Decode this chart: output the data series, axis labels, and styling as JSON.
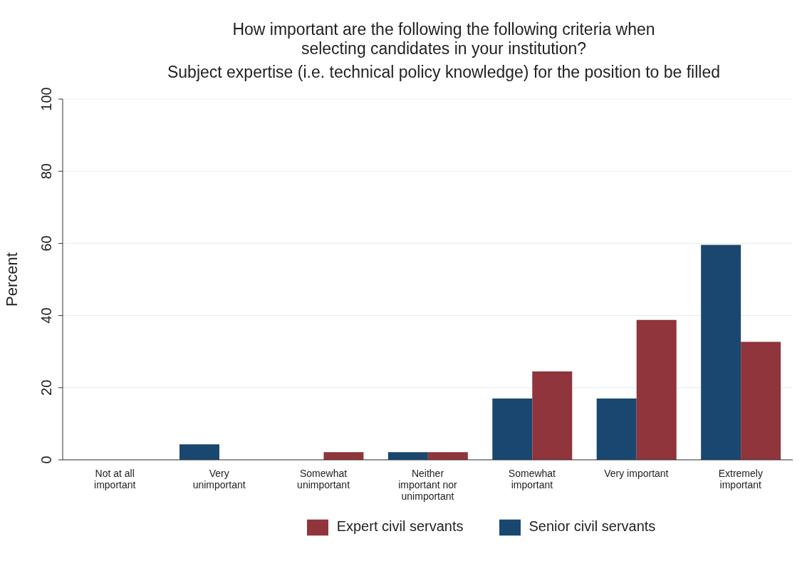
{
  "chart_data": {
    "type": "bar",
    "title": "How important are the following the following criteria when selecting candidates in your institution?",
    "subtitle": "Subject expertise (i.e. technical policy knowledge) for the position to be filled",
    "ylabel": "Percent",
    "categories": [
      "Not at all important",
      "Very unimportant",
      "Somewhat unimportant",
      "Neither important nor unimportant",
      "Somewhat important",
      "Very important",
      "Extremely important"
    ],
    "series": [
      {
        "name": "Senior civil servants",
        "color": "#1a476f",
        "values": [
          0,
          4.3,
          0,
          2.1,
          17,
          17,
          59.6
        ]
      },
      {
        "name": "Expert civil servants",
        "color": "#90353b",
        "values": [
          0,
          0,
          2.1,
          2.1,
          24.5,
          38.8,
          32.7
        ]
      }
    ],
    "ylim": [
      0,
      100
    ],
    "yticks": [
      0,
      20,
      40,
      60,
      80,
      100
    ],
    "grid": "y",
    "legend": "bottom"
  }
}
